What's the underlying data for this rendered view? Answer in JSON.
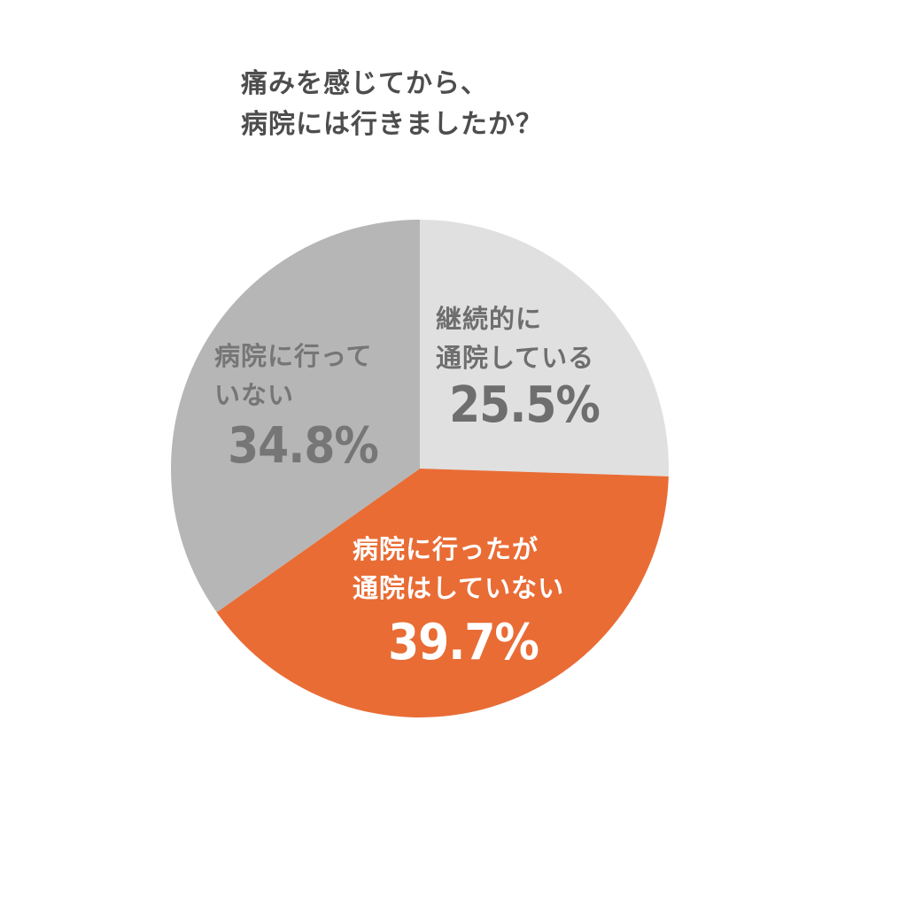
{
  "title": {
    "line1": "痛みを感じてから、",
    "line2": "病院には行きましたか？"
  },
  "colors": {
    "continuing": "#e0e0e0",
    "went_not_continuing": "#e96c35",
    "not_gone": "#b6b6b6",
    "title_text": "#4d4d4d",
    "label_text_dark": "#6e6e6e",
    "label_text_light": "#ffffff"
  },
  "labels": {
    "continuing": {
      "line1": "継続的に",
      "line2": "通院している",
      "pct": "25.5%"
    },
    "went_not_continuing": {
      "line1": "病院に行ったが",
      "line2": "通院はしていない",
      "pct": "39.7%"
    },
    "not_gone": {
      "line1": "病院に行って",
      "line2": "いない",
      "pct": "34.8%"
    }
  },
  "chart_data": {
    "type": "pie",
    "title": "痛みを感じてから、病院には行きましたか？",
    "categories": [
      "継続的に通院している",
      "病院に行ったが通院はしていない",
      "病院に行っていない"
    ],
    "values": [
      25.5,
      39.7,
      34.8
    ],
    "unit": "%",
    "colors": [
      "#e0e0e0",
      "#e96c35",
      "#b6b6b6"
    ],
    "start_angle": "12 o'clock",
    "direction": "clockwise",
    "legend": "none (labels inside slices)"
  }
}
